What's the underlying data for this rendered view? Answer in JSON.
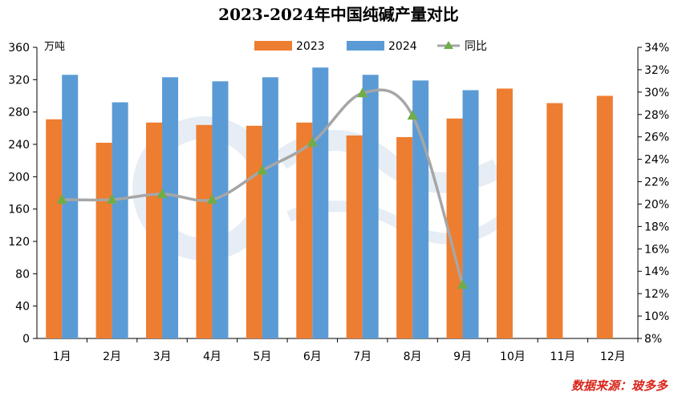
{
  "chart_data": {
    "type": "bar",
    "title": "2023-2024年中国纯碱产量对比",
    "categories": [
      "1月",
      "2月",
      "3月",
      "4月",
      "5月",
      "6月",
      "7月",
      "8月",
      "9月",
      "10月",
      "11月",
      "12月"
    ],
    "y_unit": "万吨",
    "ylim": [
      0,
      360
    ],
    "y_ticks": [
      "0",
      "40",
      "80",
      "120",
      "160",
      "200",
      "240",
      "280",
      "320",
      "360"
    ],
    "y2lim": [
      8,
      34
    ],
    "y2_ticks": [
      "8%",
      "10%",
      "12%",
      "14%",
      "16%",
      "18%",
      "20%",
      "22%",
      "24%",
      "26%",
      "28%",
      "30%",
      "32%",
      "34%"
    ],
    "series": [
      {
        "name": "2023",
        "type": "bar",
        "color": "#ed7d31",
        "values": [
          271,
          242,
          267,
          264,
          263,
          267,
          251,
          249,
          272,
          309,
          291,
          300
        ]
      },
      {
        "name": "2024",
        "type": "bar",
        "color": "#5b9bd5",
        "values": [
          326,
          292,
          323,
          318,
          323,
          335,
          326,
          319,
          307,
          null,
          null,
          null
        ]
      },
      {
        "name": "同比",
        "type": "line",
        "axis": "right",
        "line_color": "#a6a6a6",
        "marker_color": "#70ad47",
        "marker": "triangle",
        "values": [
          20.4,
          20.4,
          20.9,
          20.4,
          23.0,
          25.5,
          29.9,
          27.9,
          12.8,
          null,
          null,
          null
        ]
      }
    ],
    "legend_position": "top",
    "grid": false
  },
  "source": "数据来源：玻多多"
}
